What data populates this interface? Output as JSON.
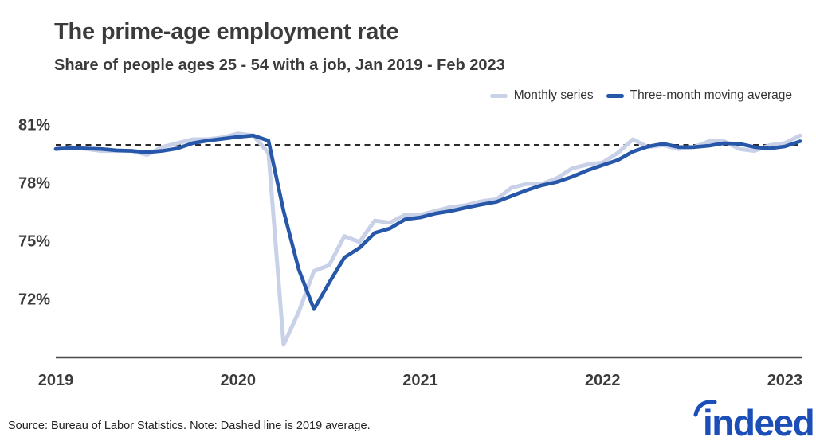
{
  "header": {
    "title": "The prime-age employment rate",
    "subtitle": "Share of people ages 25 - 54 with a job, Jan 2019 - Feb 2023"
  },
  "legend": [
    {
      "label": "Monthly series",
      "color": "#c8d1e8"
    },
    {
      "label": "Three-month moving average",
      "color": "#2757a8"
    }
  ],
  "footer": {
    "source_note": "Source: Bureau of Labor Statistics. Note: Dashed line is 2019 average.",
    "logo_text": "indeed",
    "logo_color": "#1c4eb8"
  },
  "colors": {
    "title_text": "#3b3b3b",
    "axis_line": "#4a4a4a",
    "dashed_line": "#2b2b2b",
    "monthly_series": "#c8d1e8",
    "moving_average": "#2757a8"
  },
  "chart_data": {
    "type": "line",
    "title": "The prime-age employment rate",
    "subtitle": "Share of people ages 25 - 54 with a job, Jan 2019 - Feb 2023",
    "grid": false,
    "legend_position": "top-right",
    "ylim": [
      69.0,
      81.8
    ],
    "unit": "%",
    "x": [
      "2019-01",
      "2019-02",
      "2019-03",
      "2019-04",
      "2019-05",
      "2019-06",
      "2019-07",
      "2019-08",
      "2019-09",
      "2019-10",
      "2019-11",
      "2019-12",
      "2020-01",
      "2020-02",
      "2020-03",
      "2020-04",
      "2020-05",
      "2020-06",
      "2020-07",
      "2020-08",
      "2020-09",
      "2020-10",
      "2020-11",
      "2020-12",
      "2021-01",
      "2021-02",
      "2021-03",
      "2021-04",
      "2021-05",
      "2021-06",
      "2021-07",
      "2021-08",
      "2021-09",
      "2021-10",
      "2021-11",
      "2021-12",
      "2022-01",
      "2022-02",
      "2022-03",
      "2022-04",
      "2022-05",
      "2022-06",
      "2022-07",
      "2022-08",
      "2022-09",
      "2022-10",
      "2022-11",
      "2022-12",
      "2023-01",
      "2023-02"
    ],
    "series": [
      {
        "name": "Monthly series",
        "color": "#c8d1e8",
        "values": [
          79.8,
          79.9,
          79.8,
          79.7,
          79.7,
          79.7,
          79.5,
          79.9,
          80.1,
          80.3,
          80.3,
          80.4,
          80.6,
          80.5,
          79.6,
          69.7,
          71.4,
          73.5,
          73.8,
          75.3,
          75.0,
          76.1,
          76.0,
          76.4,
          76.4,
          76.6,
          76.8,
          76.9,
          77.1,
          77.2,
          77.8,
          78.0,
          78.0,
          78.3,
          78.8,
          79.0,
          79.1,
          79.6,
          80.3,
          79.9,
          80.0,
          79.8,
          79.9,
          80.2,
          80.2,
          79.8,
          79.7,
          80.0,
          80.1,
          80.5
        ]
      },
      {
        "name": "Three-month moving average",
        "color": "#2757a8",
        "values": [
          79.8,
          79.85,
          79.83,
          79.8,
          79.73,
          79.7,
          79.63,
          79.7,
          79.83,
          80.1,
          80.23,
          80.33,
          80.43,
          80.5,
          80.23,
          76.6,
          73.57,
          71.53,
          72.9,
          74.2,
          74.7,
          75.47,
          75.7,
          76.17,
          76.27,
          76.47,
          76.6,
          76.77,
          76.93,
          77.07,
          77.37,
          77.67,
          77.93,
          78.1,
          78.37,
          78.7,
          78.97,
          79.23,
          79.67,
          79.93,
          80.07,
          79.9,
          79.9,
          79.97,
          80.1,
          80.07,
          79.9,
          79.83,
          79.93,
          80.2
        ]
      }
    ],
    "y_ticks": [
      {
        "value": 81,
        "label": "81%"
      },
      {
        "value": 78,
        "label": "78%"
      },
      {
        "value": 75,
        "label": "75%"
      },
      {
        "value": 72,
        "label": "72%"
      }
    ],
    "x_ticks": [
      {
        "index": 0,
        "label": "2019"
      },
      {
        "index": 12,
        "label": "2020"
      },
      {
        "index": 24,
        "label": "2021"
      },
      {
        "index": 36,
        "label": "2022"
      },
      {
        "index": 48,
        "label": "2023"
      }
    ],
    "dashed_line": {
      "value": 80.0,
      "label": "2019 average"
    }
  }
}
